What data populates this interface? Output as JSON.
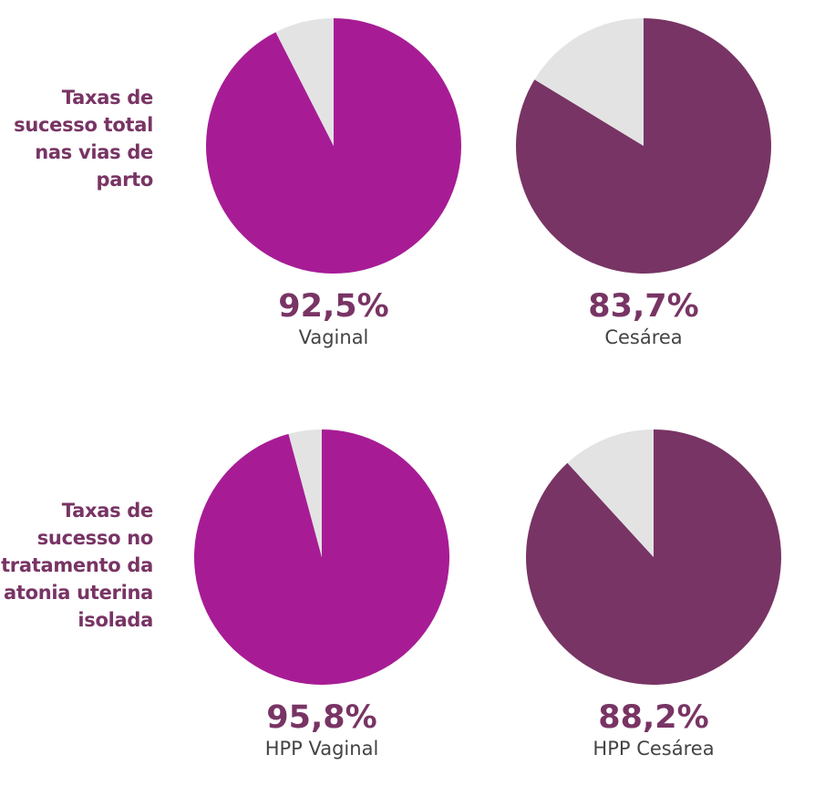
{
  "colors": {
    "vaginal": "#a71c95",
    "cesarea": "#783464",
    "remainder": "#e3e3e3",
    "label_text": "#783464"
  },
  "rows": [
    {
      "label_lines": [
        "Taxas de",
        "sucesso total",
        "nas vias de",
        "parto"
      ]
    },
    {
      "label_lines": [
        "Taxas de",
        "sucesso no",
        "tratamento da",
        "atonia uterina",
        "isolada"
      ]
    }
  ],
  "chart_data": [
    {
      "type": "pie",
      "value_text": "92,5%",
      "label": "Vaginal",
      "slices": [
        92.5,
        7.5
      ]
    },
    {
      "type": "pie",
      "value_text": "83,7%",
      "label": "Cesárea",
      "slices": [
        83.7,
        16.3
      ]
    },
    {
      "type": "pie",
      "value_text": "95,8%",
      "label": "HPP Vaginal",
      "slices": [
        95.8,
        4.2
      ]
    },
    {
      "type": "pie",
      "value_text": "88,2%",
      "label": "HPP Cesárea",
      "slices": [
        88.2,
        11.8
      ]
    }
  ]
}
